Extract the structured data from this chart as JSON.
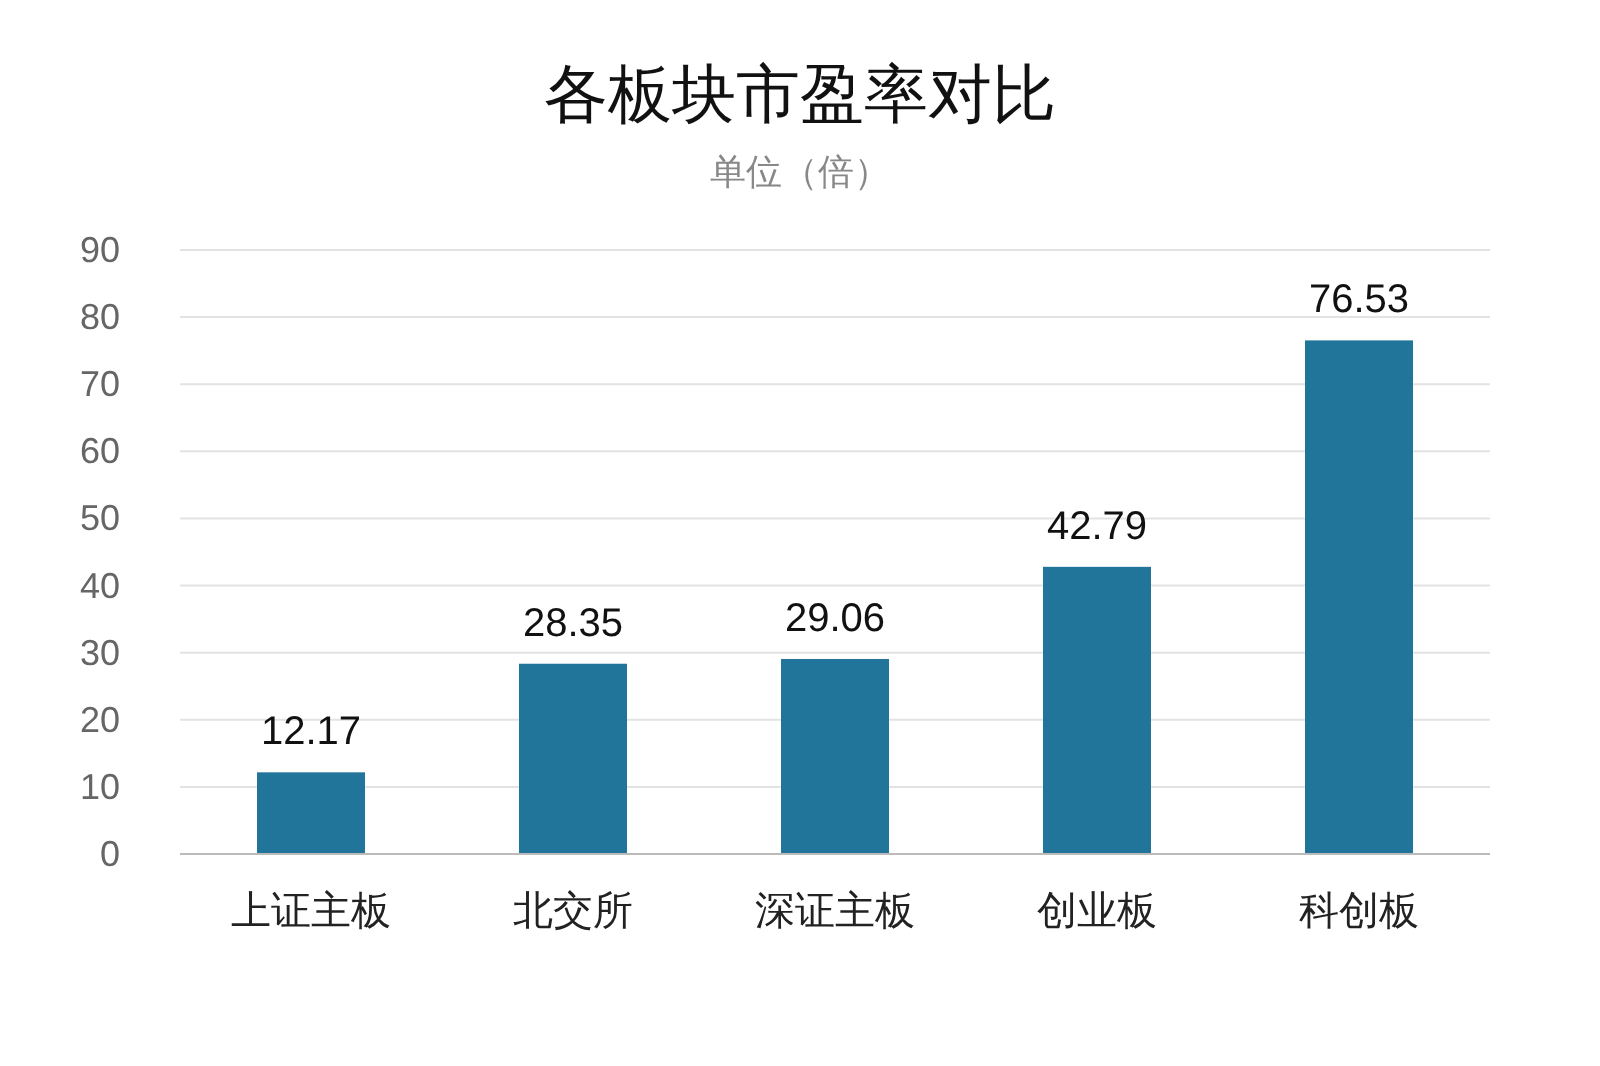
{
  "chart_data": {
    "type": "bar",
    "title": "各板块市盈率对比",
    "subtitle": "单位（倍）",
    "categories": [
      "上证主板",
      "北交所",
      "深证主板",
      "创业板",
      "科创板"
    ],
    "values": [
      12.17,
      28.35,
      29.06,
      42.79,
      76.53
    ],
    "color": "#21759b",
    "ylim": [
      0,
      90
    ],
    "yticks": [
      0,
      10,
      20,
      30,
      40,
      50,
      60,
      70,
      80,
      90
    ],
    "grid": "y",
    "data_labels": true
  }
}
